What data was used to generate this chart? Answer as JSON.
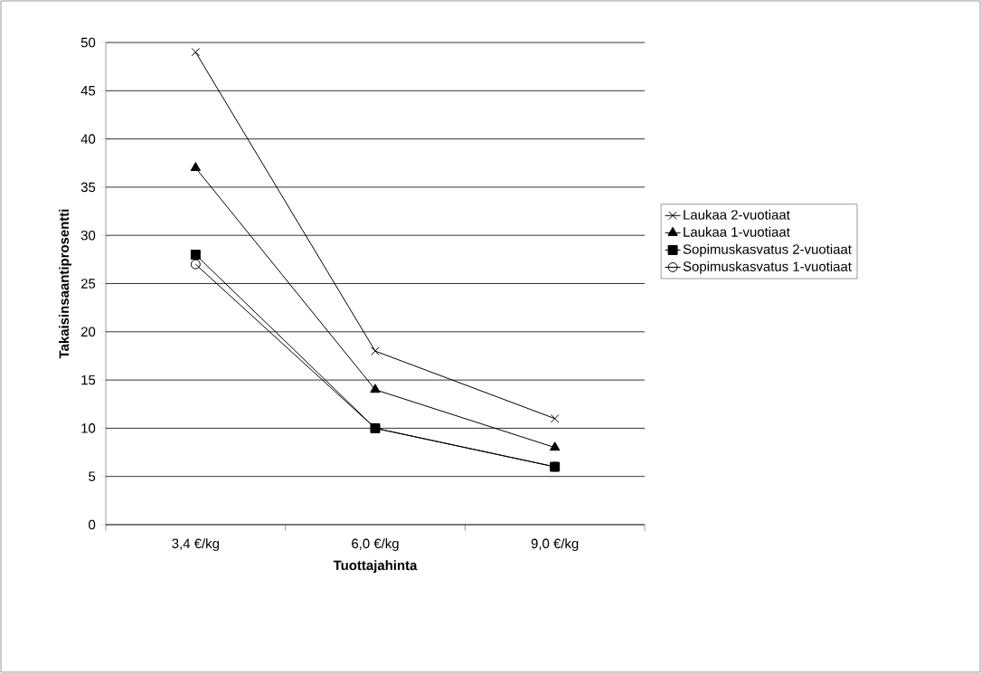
{
  "chart_data": {
    "type": "line",
    "xlabel": "Tuottajahinta",
    "ylabel": "Takaisinsaantiprosentti",
    "categories": [
      "3,4 €/kg",
      "6,0 €/kg",
      "9,0 €/kg"
    ],
    "series": [
      {
        "name": "Laukaa 2-vuotiaat",
        "color": "#000000",
        "marker": "cross",
        "values": [
          49,
          18,
          11
        ]
      },
      {
        "name": "Laukaa 1-vuotiaat",
        "color": "#000000",
        "marker": "triangle",
        "values": [
          37,
          14,
          8
        ]
      },
      {
        "name": "Sopimuskasvatus 2-vuotiaat",
        "color": "#000000",
        "marker": "square",
        "values": [
          28,
          10,
          6
        ]
      },
      {
        "name": "Sopimuskasvatus 1-vuotiaat",
        "color": "#000000",
        "marker": "circle",
        "values": [
          27,
          10,
          6
        ]
      }
    ],
    "ylim": [
      0,
      50
    ],
    "yticks": [
      0,
      5,
      10,
      15,
      20,
      25,
      30,
      35,
      40,
      45,
      50
    ],
    "grid": "y",
    "legend": "right",
    "line_style": "solid"
  }
}
